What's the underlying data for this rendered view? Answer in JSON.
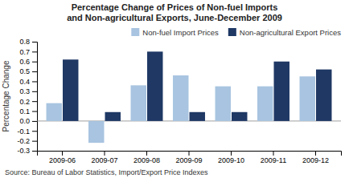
{
  "chart_data": {
    "type": "bar",
    "title": "Percentage Change of Prices of Non-fuel Imports\nand Non-agricultural Exports, June-December 2009",
    "ylabel": "Percentage Change",
    "annotations": [
      "Source: Bureau of Labor Statistics, Import/Export Price Indexes"
    ],
    "categories": [
      "2009-06",
      "2009-07",
      "2009-08",
      "2009-09",
      "2009-10",
      "2009-11",
      "2009-12"
    ],
    "series": [
      {
        "name": "Non-fuel Import Prices",
        "color": "#a8c4e0",
        "values": [
          0.18,
          -0.22,
          0.36,
          0.46,
          0.35,
          0.35,
          0.45
        ]
      },
      {
        "name": "Non-agricultural Export Prices",
        "color": "#1f3864",
        "values": [
          0.62,
          0.09,
          0.7,
          0.09,
          0.09,
          0.6,
          0.52
        ]
      }
    ],
    "ylim": [
      -0.3,
      0.8
    ],
    "yticks": [
      -0.3,
      -0.2,
      -0.1,
      {
        "value": 0,
        "label": "0.0"
      },
      0.1,
      0.2,
      0.3,
      0.4,
      0.5,
      0.6,
      0.7,
      0.8
    ],
    "grid": false,
    "legend": "upper right"
  }
}
